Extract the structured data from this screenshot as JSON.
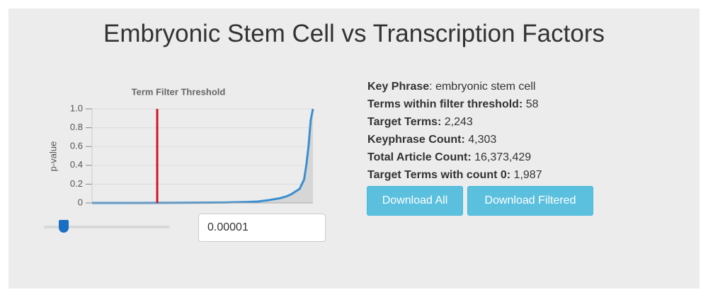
{
  "header": {
    "title": "Embryonic Stem Cell vs Transcription Factors"
  },
  "chart_data": {
    "type": "line",
    "title": "Term Filter Threshold",
    "y_label": "p-value",
    "x": [
      0,
      20,
      40,
      60,
      70,
      75,
      80,
      85,
      88,
      90,
      92,
      94,
      95,
      96,
      97,
      98,
      99,
      100
    ],
    "series": [
      {
        "color": "#3a8fd0",
        "values": [
          0,
          0,
          0.002,
          0.005,
          0.01,
          0.015,
          0.03,
          0.05,
          0.07,
          0.09,
          0.12,
          0.15,
          0.2,
          0.25,
          0.4,
          0.6,
          0.88,
          1
        ]
      }
    ],
    "fill": "#d6d6d6",
    "xlim": [
      0,
      100
    ],
    "ylim": [
      0,
      1
    ],
    "yticks": [
      0,
      0.2,
      0.4,
      0.6,
      0.8,
      {
        "value": 1,
        "label": "1.0"
      }
    ],
    "grid": true,
    "threshold_x": 29.5,
    "threshold_color": "#d0181f"
  },
  "controls": {
    "threshold_input": "0.00001"
  },
  "info": [
    {
      "label": "Key Phrase",
      "value": ": embryonic stem cell"
    },
    {
      "label": "Terms within filter threshold:",
      "value": "58"
    },
    {
      "label": "Target Terms:",
      "value": "2,243"
    },
    {
      "label": "Keyphrase Count:",
      "value": "4,303"
    },
    {
      "label": "Total Article Count:",
      "value": "16,373,429"
    },
    {
      "label": "Target Terms with count 0:",
      "value": "1,987"
    }
  ],
  "buttons": [
    "Download All",
    "Download Filtered"
  ]
}
